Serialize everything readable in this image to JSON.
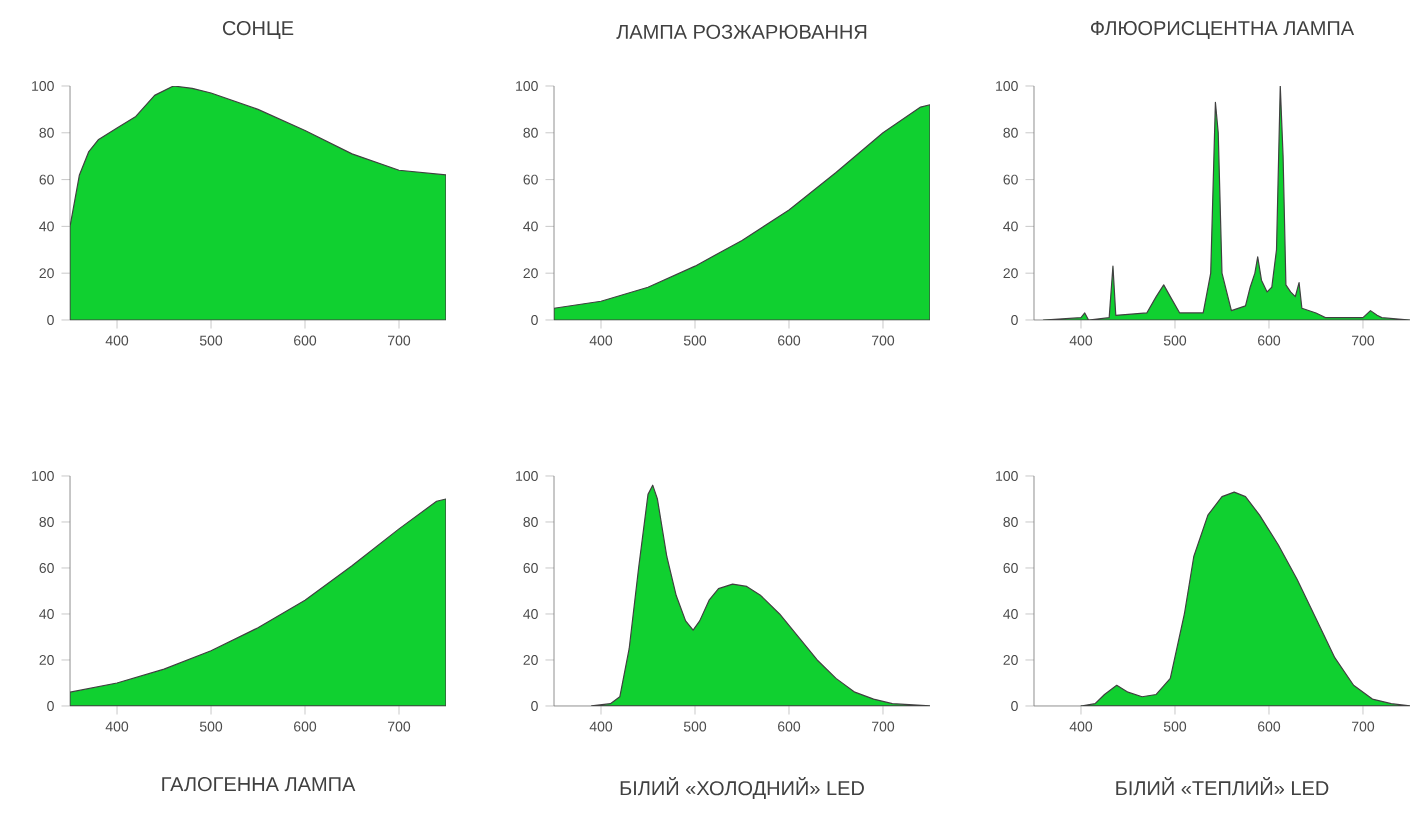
{
  "chart_data": [
    {
      "type": "area",
      "title": "СОНЦЕ",
      "color": "#10d030",
      "xlim": [
        350,
        750
      ],
      "ylim": [
        0,
        100
      ],
      "xticks": [
        400,
        500,
        600,
        700
      ],
      "yticks": [
        0,
        20,
        40,
        60,
        80,
        100
      ],
      "x": [
        350,
        360,
        370,
        380,
        400,
        420,
        440,
        460,
        480,
        500,
        550,
        600,
        650,
        700,
        750
      ],
      "values": [
        40,
        62,
        72,
        77,
        82,
        87,
        96,
        100,
        99,
        97,
        90,
        81,
        71,
        64,
        62
      ]
    },
    {
      "type": "area",
      "title": "ЛАМПА РОЗЖАРЮВАННЯ",
      "color": "#10d030",
      "xlim": [
        350,
        750
      ],
      "ylim": [
        0,
        100
      ],
      "xticks": [
        400,
        500,
        600,
        700
      ],
      "yticks": [
        0,
        20,
        40,
        60,
        80,
        100
      ],
      "x": [
        350,
        400,
        450,
        500,
        550,
        600,
        650,
        700,
        740,
        750
      ],
      "values": [
        5,
        8,
        14,
        23,
        34,
        47,
        63,
        80,
        91,
        92
      ]
    },
    {
      "type": "area",
      "title": "ФЛЮОРИСЦЕНТНА ЛАМПА",
      "color": "#10d030",
      "xlim": [
        350,
        750
      ],
      "ylim": [
        0,
        100
      ],
      "xticks": [
        400,
        500,
        600,
        700
      ],
      "yticks": [
        0,
        20,
        40,
        60,
        80,
        100
      ],
      "x": [
        360,
        400,
        404,
        408,
        430,
        434,
        437,
        470,
        480,
        488,
        495,
        505,
        530,
        538,
        543,
        546,
        550,
        560,
        575,
        580,
        585,
        588,
        592,
        598,
        603,
        608,
        612,
        615,
        618,
        623,
        628,
        632,
        635,
        650,
        655,
        660,
        700,
        708,
        715,
        720,
        750
      ],
      "values": [
        0,
        1,
        3,
        0,
        1,
        23,
        2,
        3,
        10,
        15,
        10,
        3,
        3,
        20,
        93,
        80,
        20,
        4,
        6,
        14,
        20,
        27,
        17,
        12,
        14,
        30,
        100,
        70,
        15,
        12,
        10,
        16,
        5,
        3,
        2,
        1,
        1,
        4,
        2,
        1,
        0
      ]
    },
    {
      "type": "area",
      "title": "ГАЛОГЕННА ЛАМПА",
      "color": "#10d030",
      "xlim": [
        350,
        750
      ],
      "ylim": [
        0,
        100
      ],
      "xticks": [
        400,
        500,
        600,
        700
      ],
      "yticks": [
        0,
        20,
        40,
        60,
        80,
        100
      ],
      "x": [
        350,
        400,
        450,
        500,
        550,
        600,
        650,
        700,
        740,
        750
      ],
      "values": [
        6,
        10,
        16,
        24,
        34,
        46,
        61,
        77,
        89,
        90
      ]
    },
    {
      "type": "area",
      "title": "БІЛИЙ «ХОЛОДНИЙ» LED",
      "color": "#10d030",
      "xlim": [
        350,
        750
      ],
      "ylim": [
        0,
        100
      ],
      "xticks": [
        400,
        500,
        600,
        700
      ],
      "yticks": [
        0,
        20,
        40,
        60,
        80,
        100
      ],
      "x": [
        390,
        410,
        420,
        430,
        440,
        450,
        455,
        460,
        470,
        480,
        490,
        498,
        505,
        515,
        525,
        540,
        555,
        570,
        590,
        610,
        630,
        650,
        670,
        690,
        710,
        750
      ],
      "values": [
        0,
        1,
        4,
        25,
        60,
        92,
        96,
        90,
        65,
        48,
        37,
        33,
        37,
        46,
        51,
        53,
        52,
        48,
        40,
        30,
        20,
        12,
        6,
        3,
        1,
        0
      ]
    },
    {
      "type": "area",
      "title": "БІЛИЙ «ТЕПЛИЙ» LED",
      "color": "#10d030",
      "xlim": [
        350,
        750
      ],
      "ylim": [
        0,
        100
      ],
      "xticks": [
        400,
        500,
        600,
        700
      ],
      "yticks": [
        0,
        20,
        40,
        60,
        80,
        100
      ],
      "x": [
        400,
        415,
        425,
        438,
        450,
        465,
        480,
        495,
        510,
        520,
        535,
        550,
        563,
        575,
        590,
        610,
        630,
        650,
        670,
        690,
        710,
        730,
        750
      ],
      "values": [
        0,
        1,
        5,
        9,
        6,
        4,
        5,
        12,
        40,
        65,
        83,
        91,
        93,
        91,
        83,
        70,
        55,
        38,
        21,
        9,
        3,
        1,
        0
      ]
    }
  ]
}
